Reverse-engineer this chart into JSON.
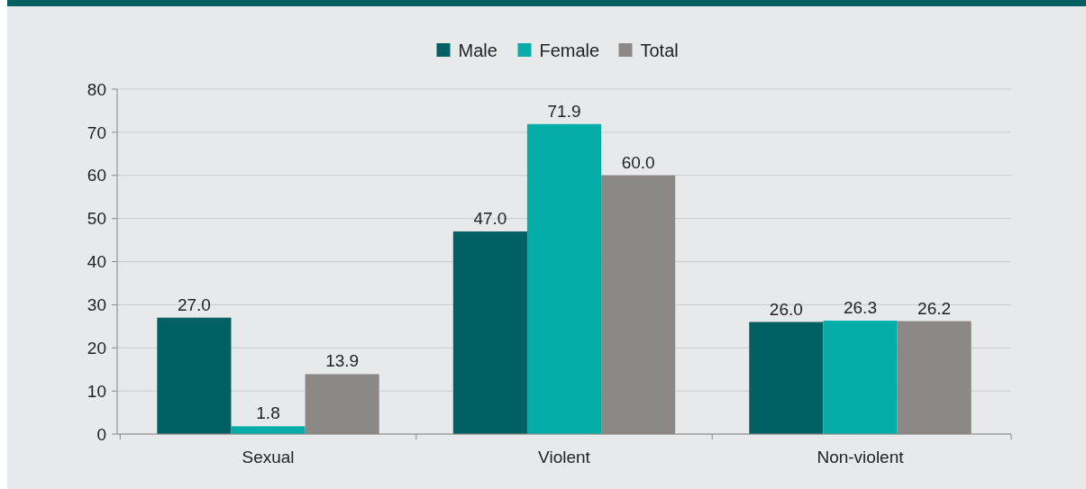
{
  "chart_data": {
    "type": "bar",
    "categories": [
      "Sexual",
      "Violent",
      "Non-violent"
    ],
    "series": [
      {
        "name": "Male",
        "color": "#006064",
        "values": [
          27.0,
          47.0,
          26.0
        ],
        "value_labels": [
          "27.0",
          "47.0",
          "26.0"
        ]
      },
      {
        "name": "Female",
        "color": "#05ada8",
        "values": [
          1.8,
          71.9,
          26.3
        ],
        "value_labels": [
          "1.8",
          "71.9",
          "26.3"
        ]
      },
      {
        "name": "Total",
        "color": "#8c8886",
        "values": [
          13.9,
          60.0,
          26.2
        ],
        "value_labels": [
          "13.9",
          "60.0",
          "26.2"
        ]
      }
    ],
    "ylim": [
      0,
      80
    ],
    "yticks": [
      0,
      10,
      20,
      30,
      40,
      50,
      60,
      70,
      80
    ],
    "grid": "y",
    "legend": "top"
  }
}
